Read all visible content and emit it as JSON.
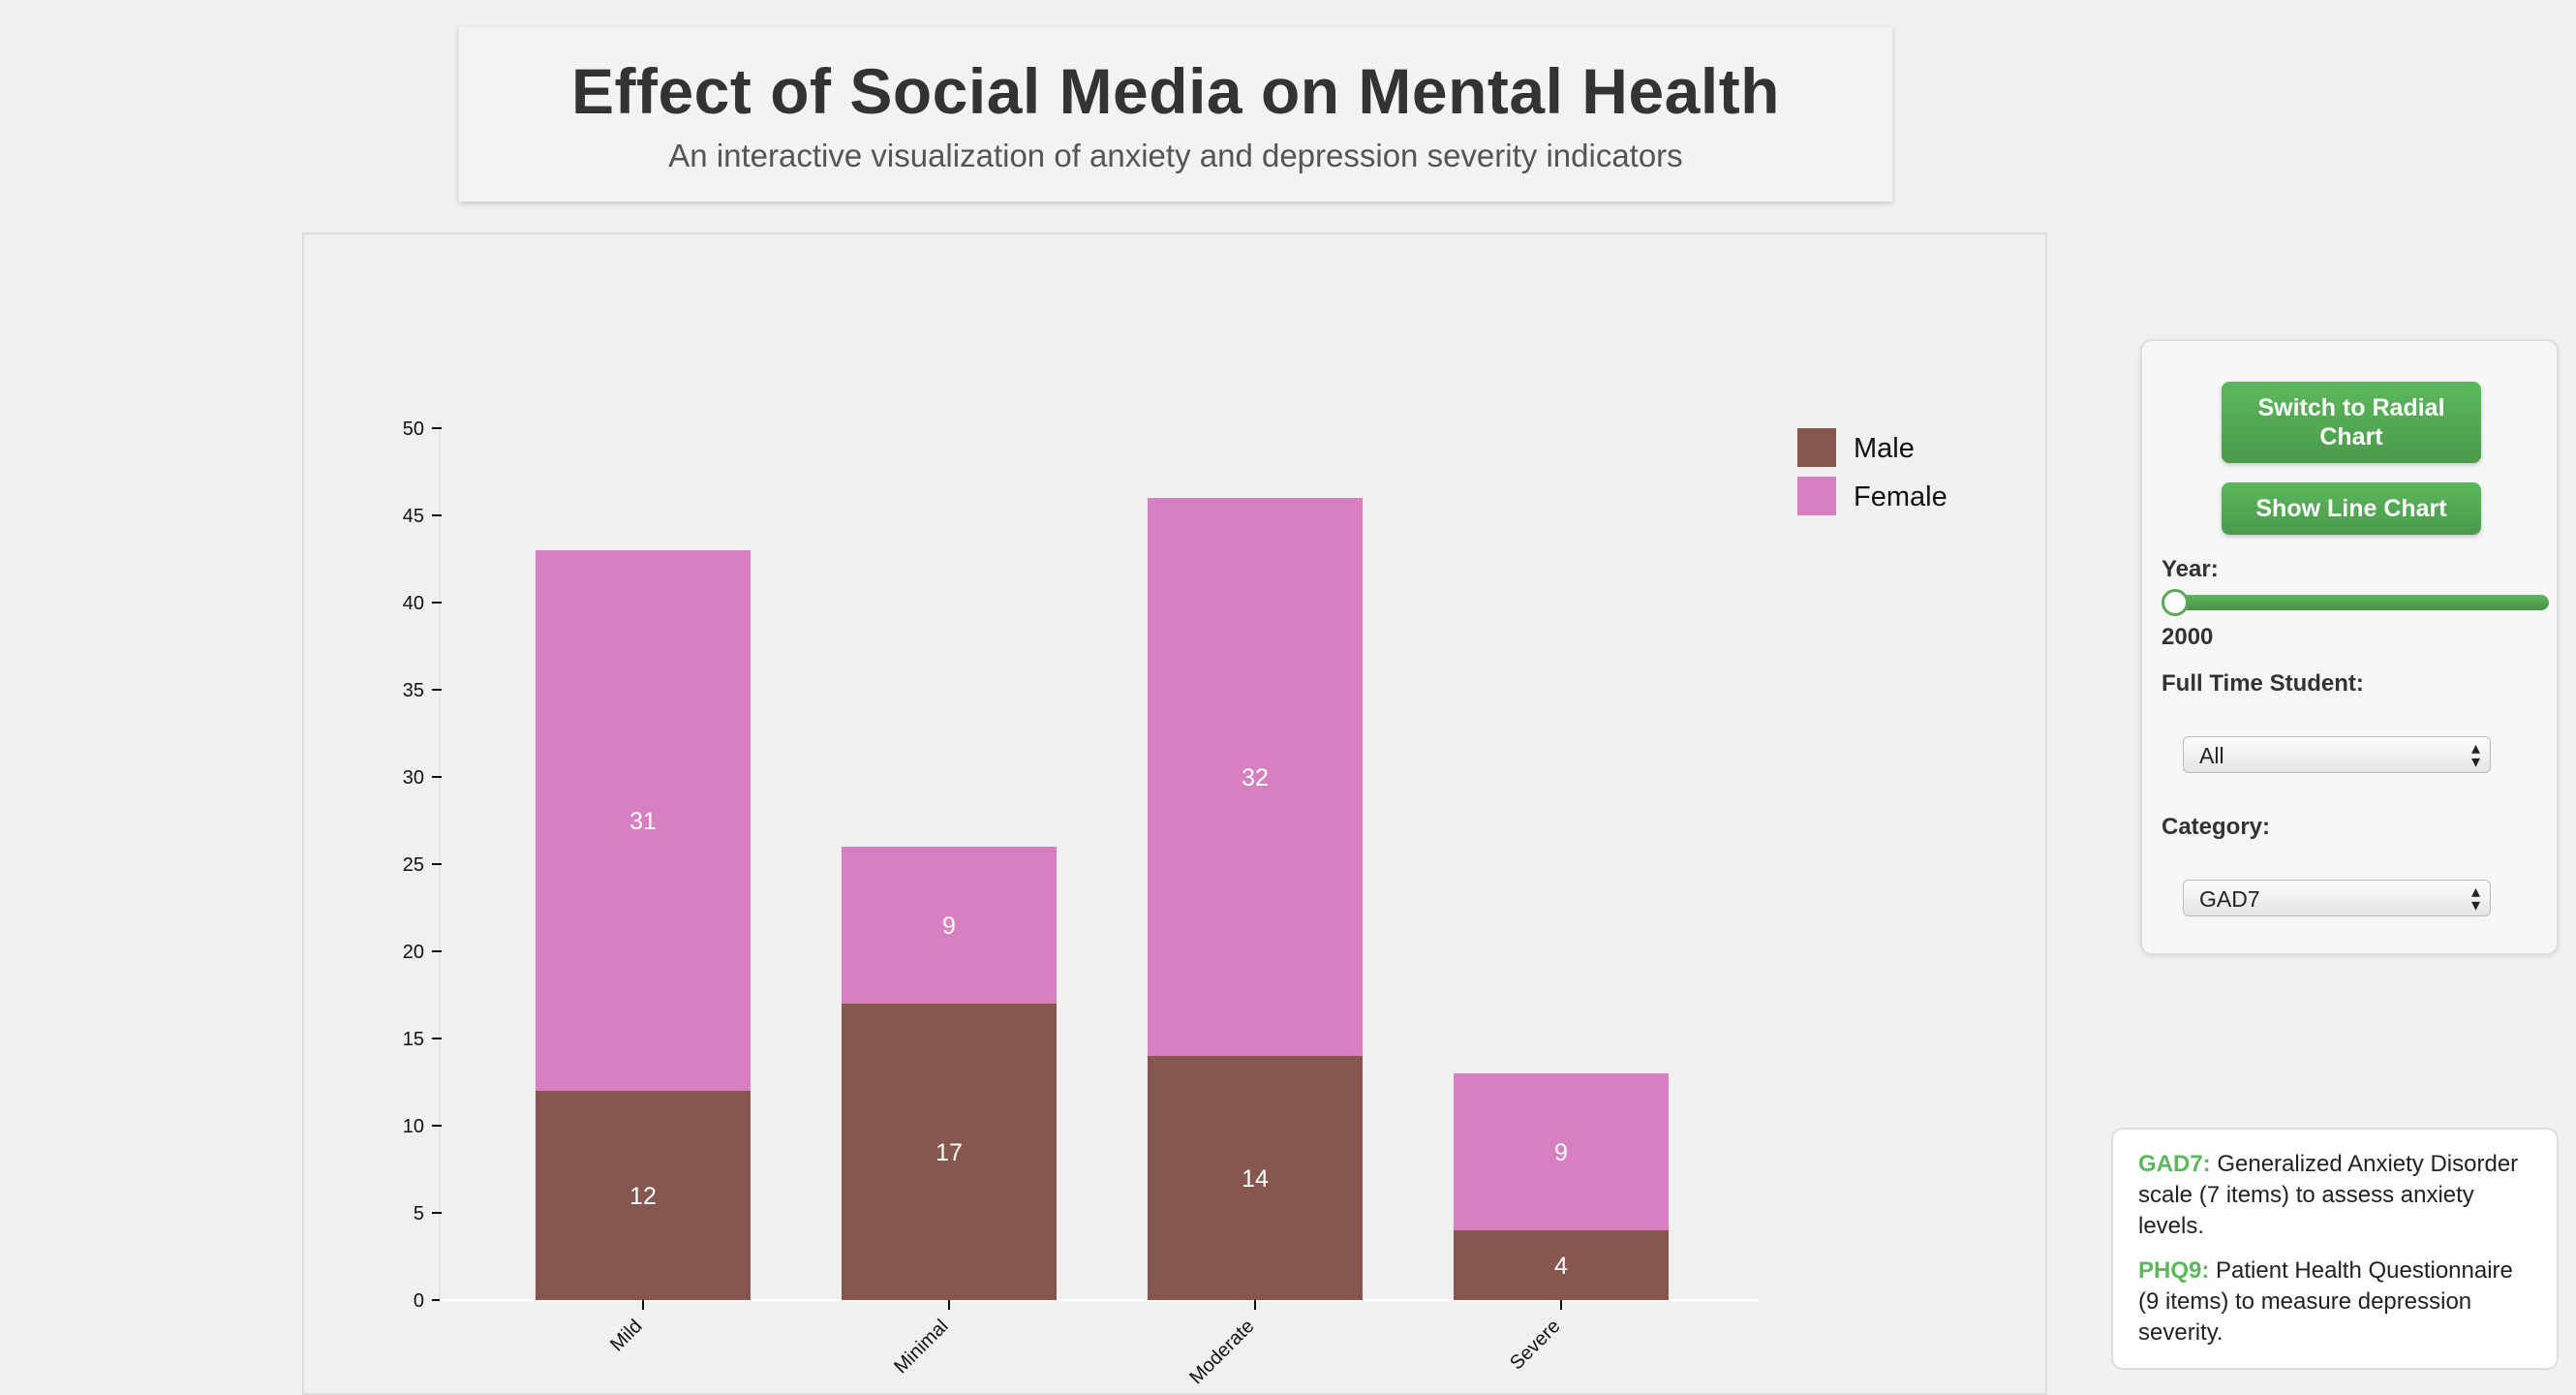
{
  "header": {
    "title": "Effect of Social Media on Mental Health",
    "subtitle": "An interactive visualization of anxiety and depression severity indicators"
  },
  "controls": {
    "radial_button": "Switch to Radial Chart",
    "line_button": "Show Line Chart",
    "year_label": "Year:",
    "year_value": "2000",
    "student_label": "Full Time Student:",
    "student_selected": "All",
    "category_label": "Category:",
    "category_selected": "GAD7",
    "select_arrow_icon": "up-down-arrows-icon",
    "slider_level": 0
  },
  "info": {
    "gad7_term": "GAD7:",
    "gad7_desc": "Generalized Anxiety Disorder scale (7 items) to assess anxiety levels.",
    "phq9_term": "PHQ9:",
    "phq9_desc": "Patient Health Questionnaire (9 items) to measure depression severity."
  },
  "chart_data": {
    "type": "bar",
    "stacked": true,
    "categories": [
      "Mild",
      "Minimal",
      "Moderate",
      "Severe"
    ],
    "series": [
      {
        "name": "Male",
        "values": [
          12,
          17,
          14,
          4
        ],
        "color": "#85574e"
      },
      {
        "name": "Female",
        "values": [
          31,
          9,
          32,
          9
        ],
        "color": "#d77fc0"
      }
    ],
    "ylim": [
      0,
      50
    ],
    "yticks": [
      0,
      5,
      10,
      15,
      20,
      25,
      30,
      35,
      40,
      45,
      50
    ],
    "legend_position": "top-right",
    "grid": false
  }
}
